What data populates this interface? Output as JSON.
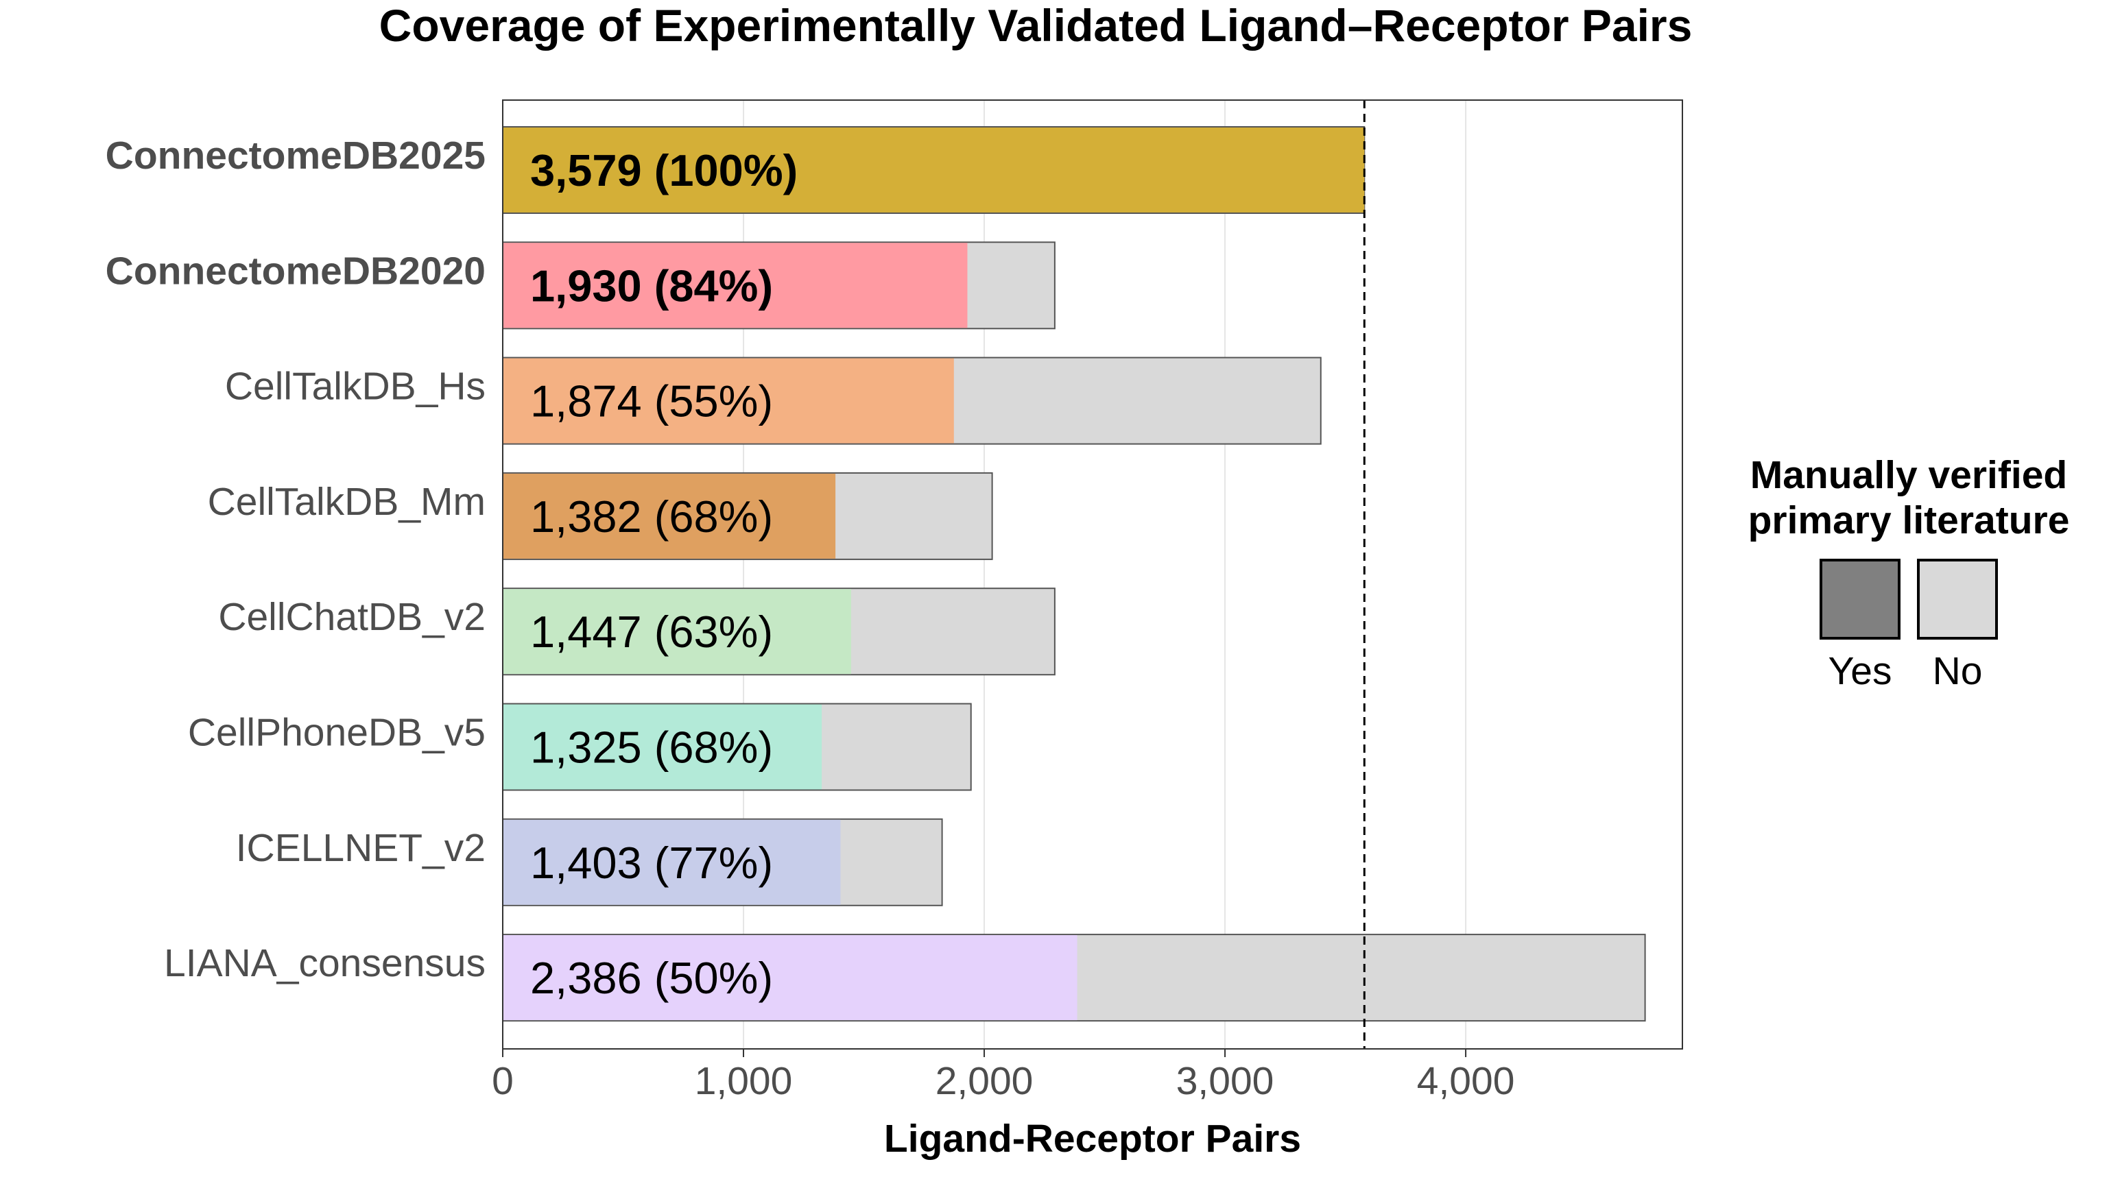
{
  "chart_data": {
    "type": "bar",
    "orientation": "horizontal",
    "title": "Coverage of Experimentally Validated Ligand–Receptor Pairs",
    "xlabel": "Ligand-Receptor Pairs",
    "ylabel": "",
    "xlim": [
      0,
      4900
    ],
    "xticks": [
      0,
      1000,
      2000,
      3000,
      4000
    ],
    "xtick_labels": [
      "0",
      "1,000",
      "2,000",
      "3,000",
      "4,000"
    ],
    "grid": "vertical major gridlines",
    "reference_line": {
      "x": 3579,
      "style": "dashed"
    },
    "legend": {
      "title": "Manually verified\nprimary literature",
      "position": "right",
      "entries": [
        {
          "label": "Yes",
          "color": "#808080"
        },
        {
          "label": "No",
          "color": "#d9d9d9"
        }
      ]
    },
    "bars": [
      {
        "category": "ConnectomeDB2025",
        "bold": true,
        "verified": 3579,
        "total": 3579,
        "label": "3,579 (100%)",
        "color": "#d4af37"
      },
      {
        "category": "ConnectomeDB2020",
        "bold": true,
        "verified": 1930,
        "total": 2293,
        "label": "1,930 (84%)",
        "color": "#ff9aa2"
      },
      {
        "category": "CellTalkDB_Hs",
        "bold": false,
        "verified": 1874,
        "total": 3398,
        "label": "1,874 (55%)",
        "color": "#f4b183"
      },
      {
        "category": "CellTalkDB_Mm",
        "bold": false,
        "verified": 1382,
        "total": 2033,
        "label": "1,382 (68%)",
        "color": "#dfa060"
      },
      {
        "category": "CellChatDB_v2",
        "bold": false,
        "verified": 1447,
        "total": 2293,
        "label": "1,447 (63%)",
        "color": "#c5e8c5"
      },
      {
        "category": "CellPhoneDB_v5",
        "bold": false,
        "verified": 1325,
        "total": 1945,
        "label": "1,325 (68%)",
        "color": "#b3ead8"
      },
      {
        "category": "ICELLNET_v2",
        "bold": false,
        "verified": 1403,
        "total": 1825,
        "label": "1,403 (77%)",
        "color": "#c7cdea"
      },
      {
        "category": "LIANA_consensus",
        "bold": false,
        "verified": 2386,
        "total": 4745,
        "label": "2,386 (50%)",
        "color": "#e5d2fc"
      }
    ]
  }
}
